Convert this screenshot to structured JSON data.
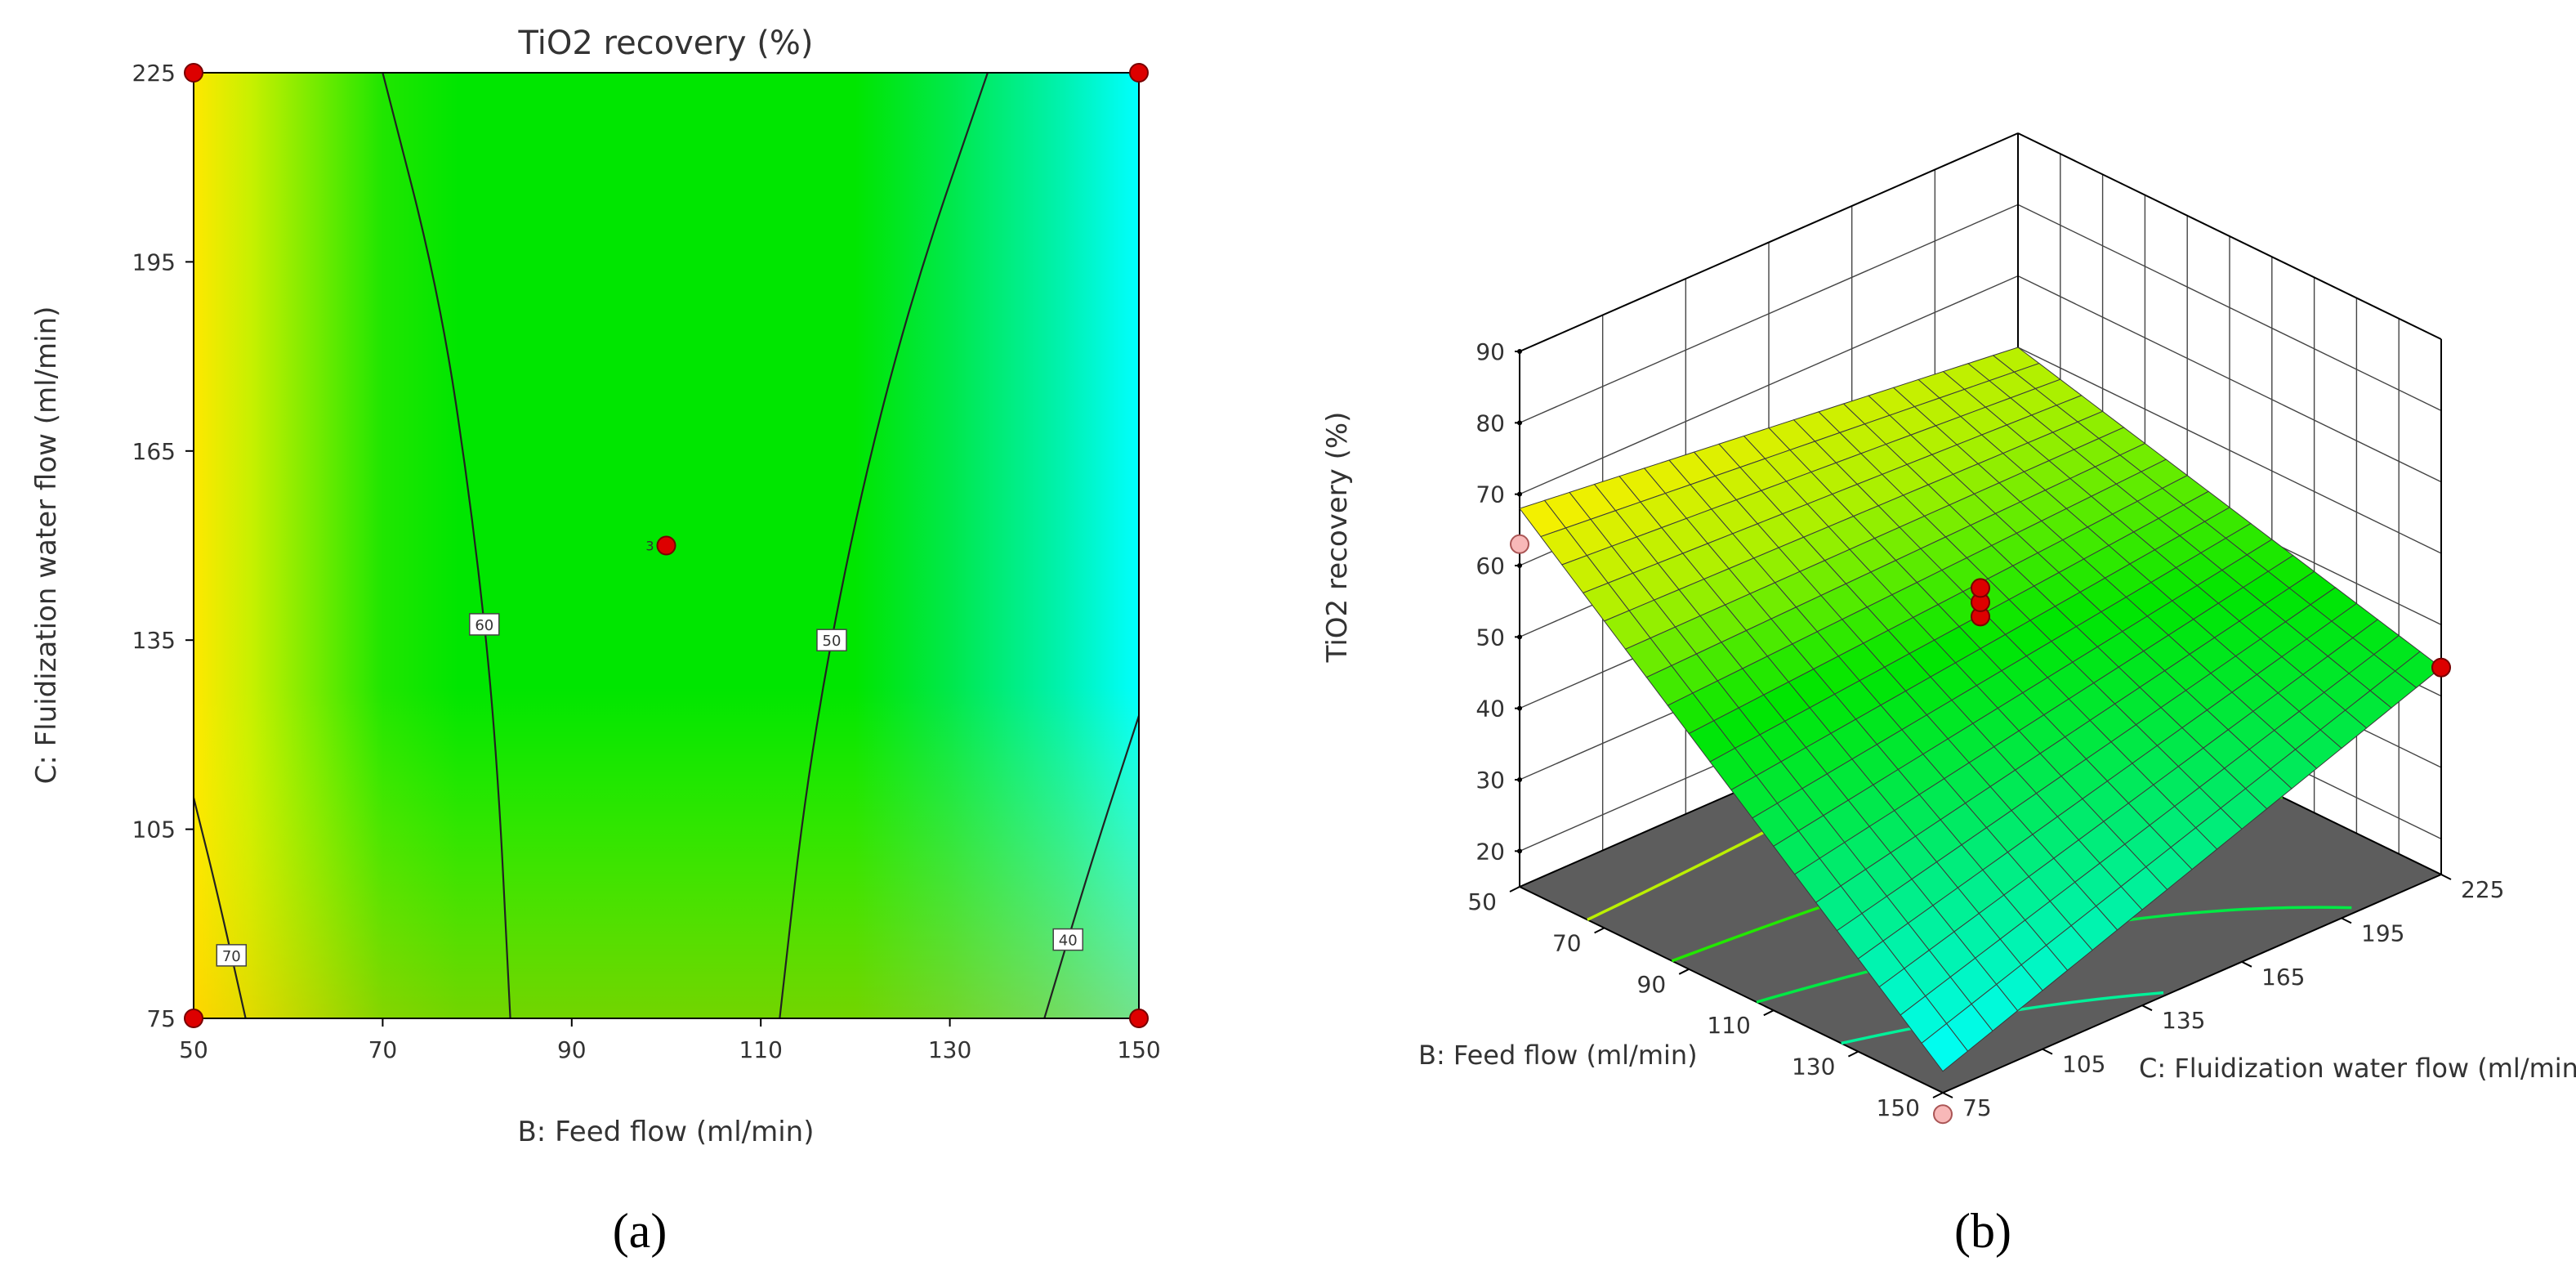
{
  "figure": {
    "panel_labels": [
      "(a)",
      "(b)"
    ]
  },
  "chart_data": [
    {
      "type": "contour",
      "title": "TiO2 recovery (%)",
      "xlabel": "B: Feed flow (ml/min)",
      "ylabel": "C: Fluidization water flow (ml/min)",
      "xlim": [
        50,
        150
      ],
      "ylim": [
        75,
        225
      ],
      "xticks": [
        50,
        70,
        90,
        110,
        130,
        150
      ],
      "yticks": [
        75,
        105,
        135,
        165,
        195,
        225
      ],
      "contours": [
        {
          "level": 70,
          "label": "70",
          "points": [
            [
              50,
              110
            ],
            [
              52.5,
              95
            ],
            [
              55.5,
              75
            ]
          ]
        },
        {
          "level": 60,
          "label": "60",
          "points": [
            [
              70,
              225
            ],
            [
              76,
              190
            ],
            [
              79.5,
              155
            ],
            [
              82,
              120
            ],
            [
              83.5,
              75
            ]
          ]
        },
        {
          "level": 50,
          "label": "50",
          "points": [
            [
              134,
              225
            ],
            [
              126,
              190
            ],
            [
              120,
              155
            ],
            [
              115,
              115
            ],
            [
              112,
              75
            ]
          ]
        },
        {
          "level": 40,
          "label": "40",
          "points": [
            [
              150,
              123
            ],
            [
              145,
              100
            ],
            [
              140,
              75
            ]
          ]
        }
      ],
      "design_points": [
        {
          "x": 50,
          "y": 225
        },
        {
          "x": 150,
          "y": 225
        },
        {
          "x": 50,
          "y": 75
        },
        {
          "x": 150,
          "y": 75
        },
        {
          "x": 100,
          "y": 150,
          "label": "3"
        }
      ],
      "colorscale": [
        "#ffe800",
        "#00e600",
        "#00ffff"
      ]
    },
    {
      "type": "surface3d",
      "zlabel": "TiO2 recovery (%)",
      "xlabel": "B: Feed flow (ml/min)",
      "ylabel": "C: Fluidization water flow (ml/min)",
      "xlim": [
        50,
        150
      ],
      "ylim": [
        75,
        225
      ],
      "zlim": [
        15,
        90
      ],
      "xticks": [
        50,
        70,
        90,
        110,
        130,
        150
      ],
      "yticks": [
        75,
        105,
        135,
        165,
        195,
        225
      ],
      "zticks": [
        20,
        30,
        40,
        50,
        60,
        70,
        80,
        90
      ],
      "surface_corners": [
        {
          "B": 50,
          "C": 75,
          "z": 68
        },
        {
          "B": 50,
          "C": 225,
          "z": 60
        },
        {
          "B": 150,
          "C": 75,
          "z": 18
        },
        {
          "B": 150,
          "C": 225,
          "z": 44
        }
      ],
      "design_points": [
        {
          "B": 50,
          "C": 75,
          "z": 63
        },
        {
          "B": 150,
          "C": 75,
          "z": 12
        },
        {
          "B": 150,
          "C": 225,
          "z": 44
        },
        {
          "B": 100,
          "C": 150,
          "z": 52
        },
        {
          "B": 100,
          "C": 150,
          "z": 54
        },
        {
          "B": 100,
          "C": 150,
          "z": 56
        }
      ],
      "floor_contour_levels": [
        70,
        60,
        50,
        40,
        30
      ]
    }
  ]
}
